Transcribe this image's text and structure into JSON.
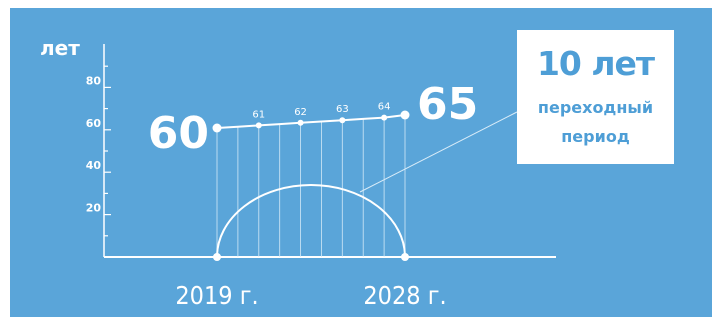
{
  "chart_data": {
    "type": "line",
    "ylabel": "лет",
    "ylim": [
      0,
      100
    ],
    "y_ticks": [
      "20",
      "40",
      "60",
      "80"
    ],
    "x_labels": [
      "2019 г.",
      "2028 г."
    ],
    "x": [
      2019,
      2020,
      2021,
      2022,
      2023,
      2024,
      2025,
      2026,
      2027,
      2028
    ],
    "values": [
      60,
      60.5,
      61,
      61.5,
      62,
      62.5,
      63,
      63.5,
      64,
      65
    ],
    "point_labels": [
      {
        "x": 2019,
        "y": 60,
        "label": "60"
      },
      {
        "x": 2021,
        "y": 61,
        "label": "61"
      },
      {
        "x": 2023,
        "y": 62,
        "label": "62"
      },
      {
        "x": 2025,
        "y": 63,
        "label": "63"
      },
      {
        "x": 2027,
        "y": 64,
        "label": "64"
      },
      {
        "x": 2028,
        "y": 65,
        "label": "65"
      }
    ],
    "annotation": {
      "title": "10 лет",
      "line1": "переходный",
      "line2": "период"
    }
  }
}
